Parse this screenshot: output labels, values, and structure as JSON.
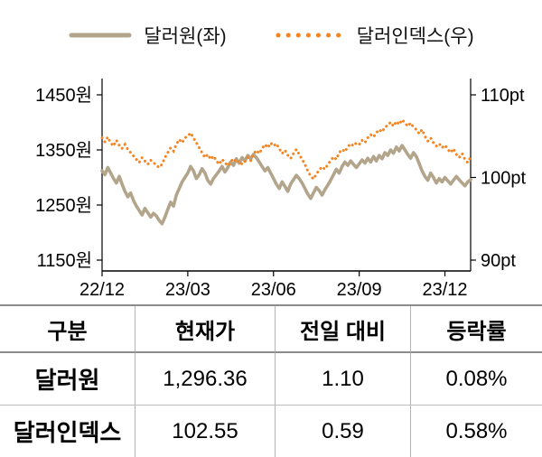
{
  "legend": {
    "items": [
      {
        "label": "달러원(좌)",
        "color": "#b3a58b",
        "style": "solid"
      },
      {
        "label": "달러인덱스(우)",
        "color": "#f5831f",
        "style": "dotted"
      }
    ]
  },
  "chart_data": {
    "type": "line",
    "title": "",
    "grid": false,
    "legend_position": "top",
    "x_ticks": [
      "22/12",
      "23/03",
      "23/06",
      "23/09",
      "23/12"
    ],
    "x_tick_indices": [
      0,
      30,
      60,
      90,
      120
    ],
    "left_axis": {
      "series": "달러원",
      "ticks": [
        "1450원",
        "1350원",
        "1250원",
        "1150원"
      ],
      "tick_values": [
        1450,
        1350,
        1250,
        1150
      ],
      "min": 1150,
      "max": 1450
    },
    "right_axis": {
      "series": "달러인덱스",
      "ticks": [
        "110pt",
        "100pt",
        "90pt"
      ],
      "tick_values": [
        110,
        100,
        90
      ],
      "min": 90,
      "max": 110
    },
    "series": [
      {
        "name": "달러원(좌)",
        "axis": "left",
        "style": "solid",
        "color": "#b3a58b",
        "width": 3.6,
        "values": [
          1312,
          1305,
          1318,
          1308,
          1298,
          1290,
          1302,
          1288,
          1275,
          1265,
          1272,
          1258,
          1248,
          1240,
          1232,
          1244,
          1236,
          1228,
          1235,
          1230,
          1222,
          1216,
          1228,
          1242,
          1255,
          1248,
          1268,
          1280,
          1292,
          1300,
          1308,
          1320,
          1312,
          1298,
          1305,
          1316,
          1308,
          1295,
          1288,
          1298,
          1305,
          1312,
          1320,
          1310,
          1318,
          1328,
          1322,
          1334,
          1326,
          1336,
          1330,
          1340,
          1334,
          1342,
          1336,
          1328,
          1320,
          1312,
          1318,
          1308,
          1298,
          1288,
          1280,
          1292,
          1284,
          1275,
          1288,
          1296,
          1304,
          1298,
          1290,
          1280,
          1270,
          1262,
          1272,
          1282,
          1276,
          1268,
          1278,
          1286,
          1295,
          1305,
          1315,
          1308,
          1320,
          1328,
          1322,
          1330,
          1324,
          1318,
          1325,
          1332,
          1326,
          1335,
          1328,
          1338,
          1330,
          1340,
          1334,
          1345,
          1340,
          1350,
          1344,
          1355,
          1348,
          1358,
          1350,
          1342,
          1335,
          1345,
          1338,
          1325,
          1312,
          1302,
          1295,
          1308,
          1300,
          1290,
          1298,
          1292,
          1300,
          1294,
          1288,
          1295,
          1302,
          1296,
          1290,
          1285,
          1292,
          1296
        ]
      },
      {
        "name": "달러인덱스(우)",
        "axis": "right",
        "style": "dotted",
        "color": "#f5831f",
        "width": 3,
        "values": [
          104.8,
          104.3,
          104.9,
          104.2,
          103.8,
          104.5,
          103.9,
          103.5,
          104.0,
          103.4,
          103.0,
          102.6,
          102.2,
          101.8,
          102.4,
          102.0,
          101.6,
          102.1,
          101.8,
          101.5,
          101.2,
          101.6,
          102.4,
          103.0,
          103.6,
          103.2,
          104.0,
          104.6,
          104.2,
          104.8,
          105.0,
          105.4,
          104.8,
          104.2,
          103.6,
          103.0,
          102.4,
          102.8,
          102.2,
          102.6,
          102.0,
          101.6,
          102.2,
          101.8,
          101.4,
          101.9,
          102.3,
          101.8,
          102.0,
          101.6,
          101.9,
          102.4,
          102.0,
          102.8,
          103.3,
          102.9,
          103.5,
          104.0,
          103.6,
          104.2,
          103.8,
          104.1,
          103.5,
          102.9,
          103.3,
          102.7,
          102.3,
          102.9,
          103.4,
          102.8,
          102.2,
          101.6,
          100.8,
          100.2,
          99.8,
          100.4,
          100.9,
          101.3,
          101.0,
          101.6,
          102.0,
          102.5,
          102.2,
          103.0,
          103.4,
          103.1,
          103.7,
          104.1,
          103.8,
          104.2,
          104.0,
          104.5,
          104.2,
          104.8,
          105.2,
          104.9,
          105.4,
          105.8,
          105.5,
          106.1,
          106.3,
          106.7,
          106.2,
          106.8,
          106.4,
          107.0,
          106.6,
          106.2,
          106.6,
          106.1,
          105.8,
          105.3,
          105.8,
          105.0,
          104.4,
          104.8,
          104.2,
          103.8,
          104.1,
          103.6,
          103.9,
          103.4,
          103.0,
          103.5,
          102.8,
          102.4,
          102.9,
          102.2,
          101.8,
          102.5
        ]
      }
    ]
  },
  "table": {
    "headers": [
      "구분",
      "현재가",
      "전일 대비",
      "등락률"
    ],
    "rows": [
      [
        "달러원",
        "1,296.36",
        "1.10",
        "0.08%"
      ],
      [
        "달러인덱스",
        "102.55",
        "0.59",
        "0.58%"
      ]
    ]
  }
}
